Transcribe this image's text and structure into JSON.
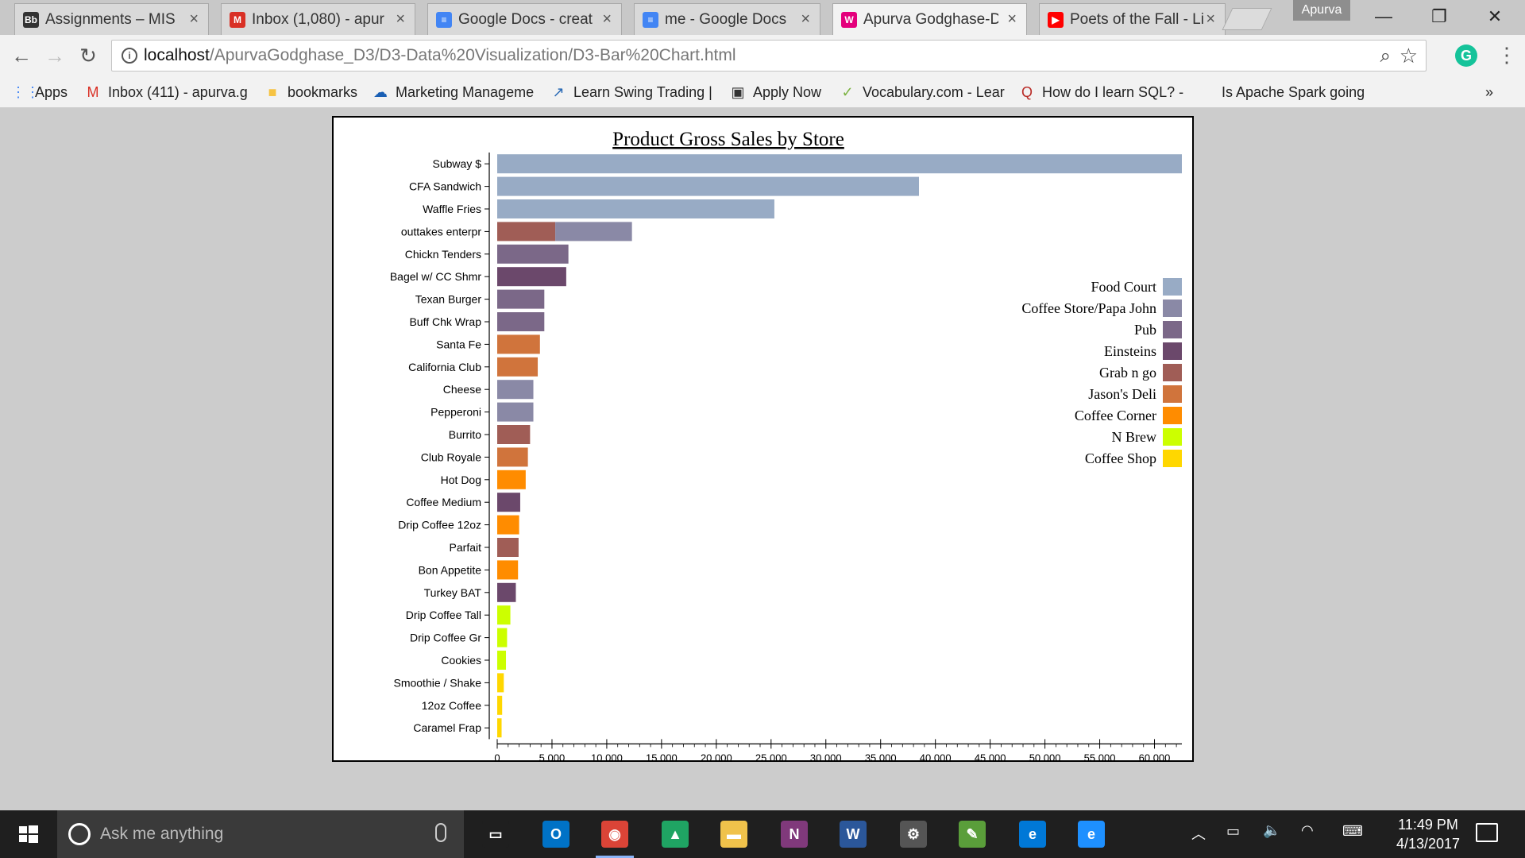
{
  "browser": {
    "tabs": [
      {
        "title": "Assignments – MIS (",
        "favicon": "Bb",
        "color": "#333333"
      },
      {
        "title": "Inbox (1,080) - apur",
        "favicon": "M",
        "color": "#d93025"
      },
      {
        "title": "Google Docs - creat",
        "favicon": "≡",
        "color": "#4285f4"
      },
      {
        "title": "me - Google Docs",
        "favicon": "≡",
        "color": "#4285f4"
      },
      {
        "title": "Apurva Godghase-D",
        "favicon": "W",
        "color": "#e4007c"
      },
      {
        "title": "Poets of the Fall - Li",
        "favicon": "▶",
        "color": "#ff0000"
      }
    ],
    "profile_name": "Apurva",
    "url_host": "localhost",
    "url_path": "/ApurvaGodghase_D3/D3-Data%20Visualization/D3-Bar%20Chart.html",
    "bookmarks": [
      {
        "label": "Apps",
        "icon": "apps-grid-icon"
      },
      {
        "label": "Inbox (411) - apurva.g",
        "icon": "gmail-icon"
      },
      {
        "label": "bookmarks",
        "icon": "folder-icon"
      },
      {
        "label": "Marketing Manageme",
        "icon": "cloud-icon"
      },
      {
        "label": "Learn Swing Trading |",
        "icon": "chart-arrow-icon"
      },
      {
        "label": "Apply Now",
        "icon": "apply-icon"
      },
      {
        "label": "Vocabulary.com - Lear",
        "icon": "check-icon"
      },
      {
        "label": "How do I learn SQL? -",
        "icon": "quora-icon"
      },
      {
        "label": "Is Apache Spark going",
        "icon": ""
      }
    ],
    "bookmarks_overflow": "»"
  },
  "chart_data": {
    "type": "bar",
    "orientation": "horizontal",
    "title": "Product Gross Sales by Store",
    "xlim": [
      0,
      62500
    ],
    "x_ticks": [
      "0",
      "5,000",
      "10,000",
      "15,000",
      "20,000",
      "25,000",
      "30,000",
      "35,000",
      "40,000",
      "45,000",
      "50,000",
      "55,000",
      "60,000"
    ],
    "stores": [
      {
        "name": "Food Court",
        "color": "#98abc5"
      },
      {
        "name": "Coffee Store/Papa John",
        "color": "#8a89a6"
      },
      {
        "name": "Pub",
        "color": "#7b6888"
      },
      {
        "name": "Einsteins",
        "color": "#6b486b"
      },
      {
        "name": "Grab n go",
        "color": "#a05d56"
      },
      {
        "name": "Jason's Deli",
        "color": "#d0743c"
      },
      {
        "name": "Coffee Corner",
        "color": "#ff8c00"
      },
      {
        "name": "N Brew",
        "color": "#ccff00"
      },
      {
        "name": "Coffee Shop",
        "color": "#ffd700"
      }
    ],
    "products": [
      {
        "name": "Subway $",
        "segments": [
          {
            "store": "Food Court",
            "value": 62500
          }
        ]
      },
      {
        "name": "CFA Sandwich",
        "segments": [
          {
            "store": "Food Court",
            "value": 38500
          }
        ]
      },
      {
        "name": "Waffle Fries",
        "segments": [
          {
            "store": "Food Court",
            "value": 25300
          }
        ]
      },
      {
        "name": "outtakes enterpr",
        "segments": [
          {
            "store": "Grab n go",
            "value": 5300
          },
          {
            "store": "Coffee Store/Papa John",
            "value": 7000
          }
        ]
      },
      {
        "name": "Chickn Tenders",
        "segments": [
          {
            "store": "Pub",
            "value": 6500
          }
        ]
      },
      {
        "name": "Bagel w/ CC Shmr",
        "segments": [
          {
            "store": "Einsteins",
            "value": 6300
          }
        ]
      },
      {
        "name": "Texan Burger",
        "segments": [
          {
            "store": "Pub",
            "value": 4300
          }
        ]
      },
      {
        "name": "Buff Chk Wrap",
        "segments": [
          {
            "store": "Pub",
            "value": 4300
          }
        ]
      },
      {
        "name": "Santa Fe",
        "segments": [
          {
            "store": "Jason's Deli",
            "value": 3900
          }
        ]
      },
      {
        "name": "California Club",
        "segments": [
          {
            "store": "Jason's Deli",
            "value": 3700
          }
        ]
      },
      {
        "name": "Cheese",
        "segments": [
          {
            "store": "Coffee Store/Papa John",
            "value": 3300
          }
        ]
      },
      {
        "name": "Pepperoni",
        "segments": [
          {
            "store": "Coffee Store/Papa John",
            "value": 3300
          }
        ]
      },
      {
        "name": "Burrito",
        "segments": [
          {
            "store": "Grab n go",
            "value": 3000
          }
        ]
      },
      {
        "name": "Club Royale",
        "segments": [
          {
            "store": "Jason's Deli",
            "value": 2800
          }
        ]
      },
      {
        "name": "Hot Dog",
        "segments": [
          {
            "store": "Coffee Corner",
            "value": 2600
          }
        ]
      },
      {
        "name": "Coffee Medium",
        "segments": [
          {
            "store": "Einsteins",
            "value": 2100
          }
        ]
      },
      {
        "name": "Drip Coffee 12oz",
        "segments": [
          {
            "store": "Coffee Corner",
            "value": 2000
          }
        ]
      },
      {
        "name": "Parfait",
        "segments": [
          {
            "store": "Grab n go",
            "value": 1950
          }
        ]
      },
      {
        "name": "Bon Appetite",
        "segments": [
          {
            "store": "Coffee Corner",
            "value": 1900
          }
        ]
      },
      {
        "name": "Turkey BAT",
        "segments": [
          {
            "store": "Einsteins",
            "value": 1700
          }
        ]
      },
      {
        "name": "Drip Coffee Tall",
        "segments": [
          {
            "store": "N Brew",
            "value": 1200
          }
        ]
      },
      {
        "name": "Drip Coffee Gr",
        "segments": [
          {
            "store": "N Brew",
            "value": 900
          }
        ]
      },
      {
        "name": "Cookies",
        "segments": [
          {
            "store": "N Brew",
            "value": 800
          }
        ]
      },
      {
        "name": "Smoothie / Shake",
        "segments": [
          {
            "store": "Coffee Shop",
            "value": 600
          }
        ]
      },
      {
        "name": "12oz Coffee",
        "segments": [
          {
            "store": "Coffee Shop",
            "value": 450
          }
        ]
      },
      {
        "name": "Caramel Frap",
        "segments": [
          {
            "store": "Coffee Shop",
            "value": 400
          }
        ]
      }
    ],
    "legend_position": "right-middle",
    "grid": false
  },
  "taskbar": {
    "search_placeholder": "Ask me anything",
    "apps": [
      {
        "name": "task-view",
        "glyph": "▭",
        "color": "#1f1f1f"
      },
      {
        "name": "outlook",
        "glyph": "O",
        "color": "#0072c6"
      },
      {
        "name": "chrome",
        "glyph": "◉",
        "color": "#db4437"
      },
      {
        "name": "google-drive",
        "glyph": "▲",
        "color": "#1fa463"
      },
      {
        "name": "file-explorer",
        "glyph": "▬",
        "color": "#f0c24b"
      },
      {
        "name": "onenote",
        "glyph": "N",
        "color": "#80397b"
      },
      {
        "name": "word",
        "glyph": "W",
        "color": "#2b579a"
      },
      {
        "name": "settings-app",
        "glyph": "⚙",
        "color": "#555555"
      },
      {
        "name": "spreadsheet-app",
        "glyph": "✎",
        "color": "#5a9e3a"
      },
      {
        "name": "edge",
        "glyph": "e",
        "color": "#0078d7"
      },
      {
        "name": "internet-explorer",
        "glyph": "e",
        "color": "#1e90ff"
      }
    ],
    "time": "11:49 PM",
    "date": "4/13/2017"
  }
}
